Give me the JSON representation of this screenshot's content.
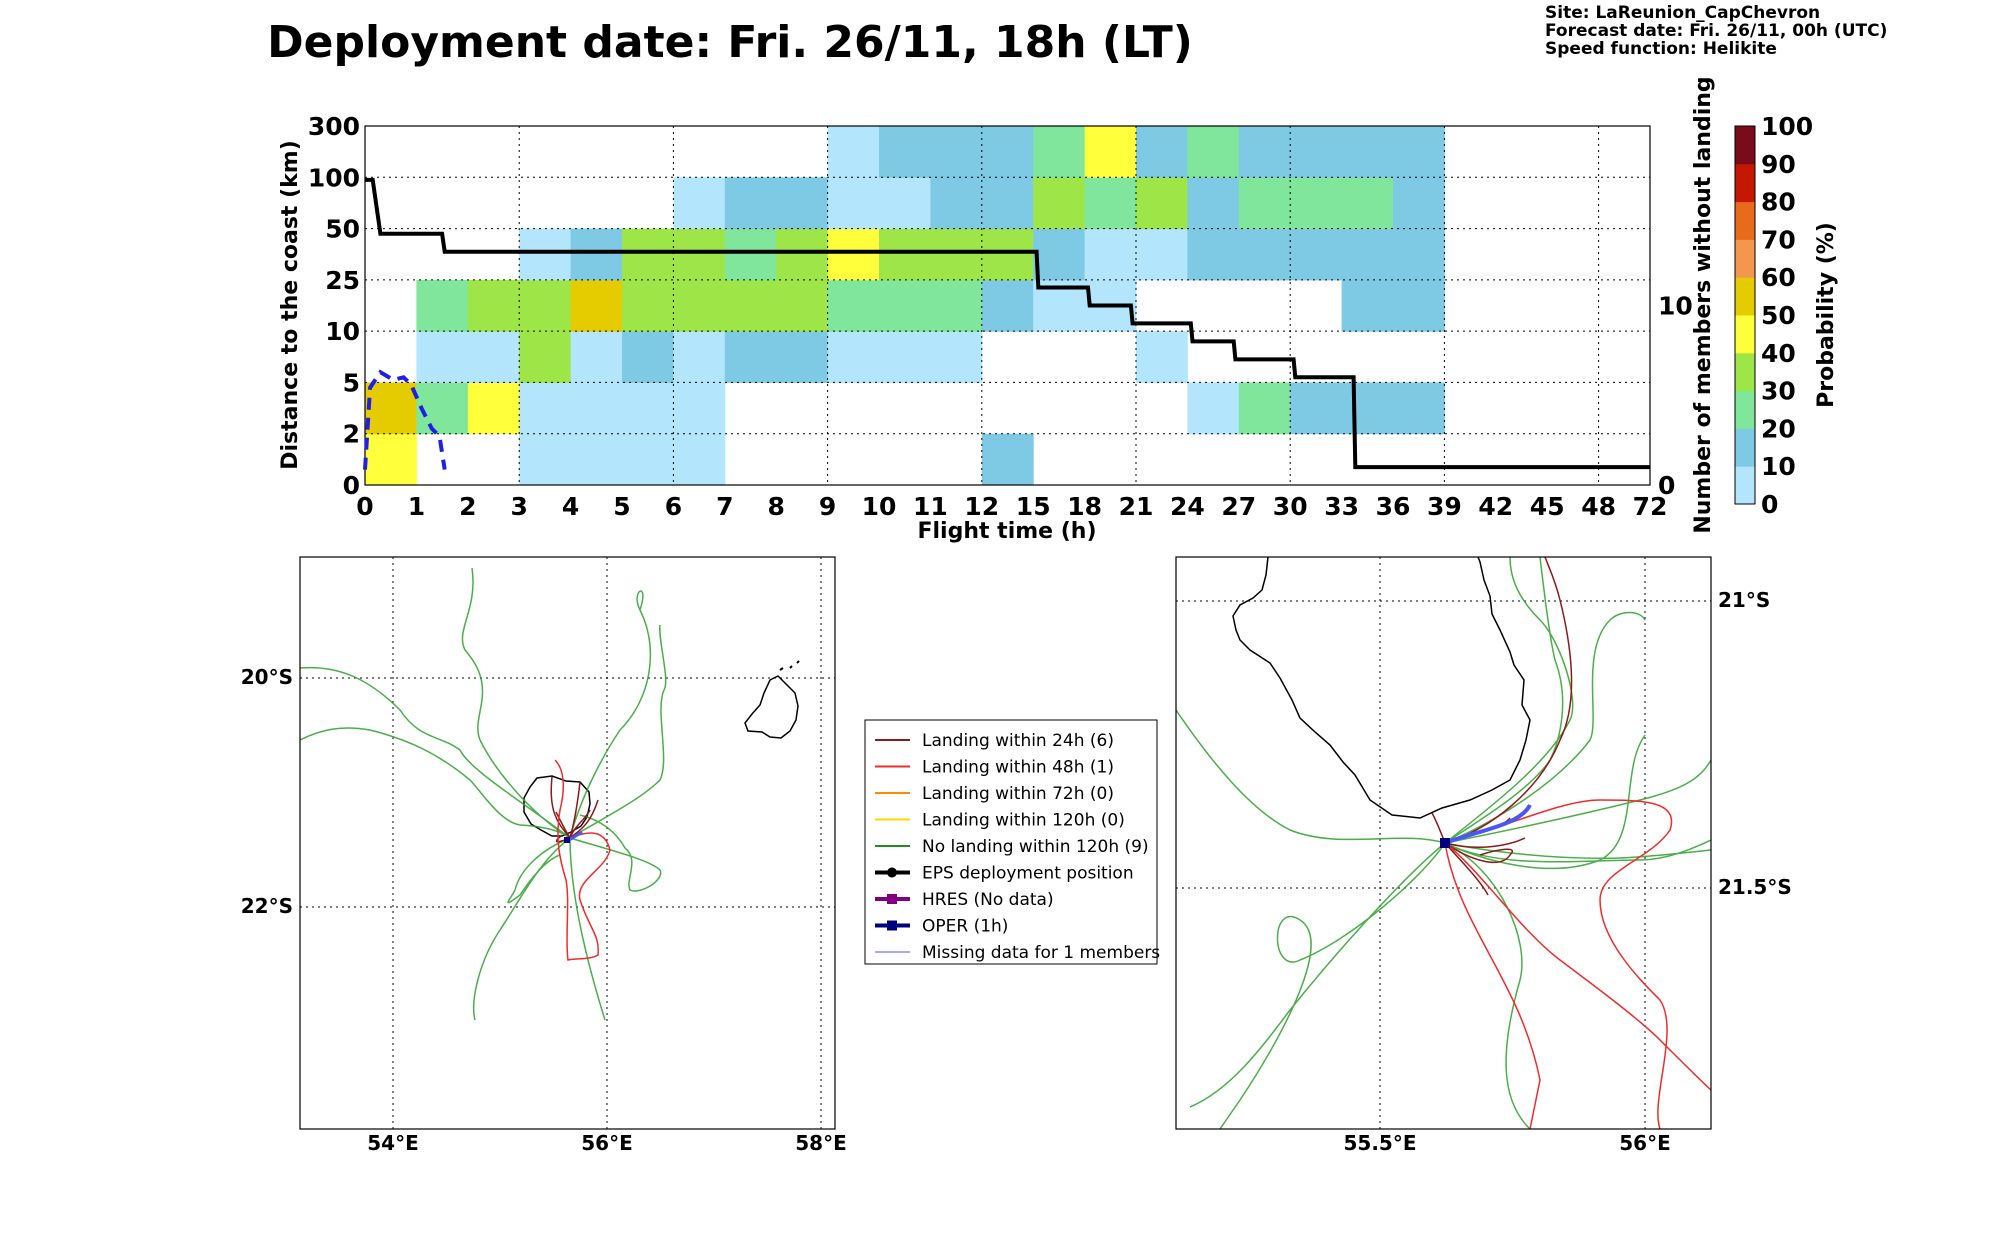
{
  "title": "Deployment date: Fri. 26/11, 18h (LT)",
  "info": {
    "site": "Site: LaReunion_CapChevron",
    "forecast": "Forecast date: Fri. 26/11, 00h (UTC)",
    "speed": "Speed function: Helikite"
  },
  "colors": {
    "prob_bins": [
      "#b3e5fc",
      "#7ecae4",
      "#7fe69b",
      "#9ee547",
      "#ffff3c",
      "#e5cc00",
      "#f5964f",
      "#e86a1c",
      "#c51800",
      "#7a0b1b"
    ],
    "landing24": "#8b1a1a",
    "landing48": "#ee2c2c",
    "landing72": "#ff8c00",
    "landing120": "#ffd700",
    "no_landing": "#228b22",
    "eps": "#000000",
    "hres": "#800080",
    "oper": "#00007f",
    "missing": "#4b57f5"
  },
  "chart_data": [
    {
      "type": "heatmap",
      "xlabel": "Flight time (h)",
      "ylabel": "Distance to the coast (km)",
      "ylabel_right": "Number of members without landing",
      "colorbar_label": "Probability (%)",
      "x_ticks": [
        "0",
        "1",
        "2",
        "3",
        "4",
        "5",
        "6",
        "7",
        "8",
        "9",
        "10",
        "11",
        "12",
        "15",
        "18",
        "21",
        "24",
        "27",
        "30",
        "33",
        "36",
        "39",
        "42",
        "45",
        "48",
        "72"
      ],
      "y_ticks": [
        "0",
        "2",
        "5",
        "10",
        "25",
        "50",
        "100",
        "300"
      ],
      "right_ticks": [
        "0",
        "10"
      ],
      "right_ylim": [
        0,
        20
      ],
      "colorbar_ticks": [
        "0",
        "10",
        "20",
        "30",
        "40",
        "50",
        "60",
        "70",
        "80",
        "90",
        "100"
      ],
      "cells": [
        [
          0,
          0,
          40
        ],
        [
          0,
          1,
          50
        ],
        [
          1,
          1,
          20
        ],
        [
          2,
          1,
          40
        ],
        [
          3,
          1,
          0
        ],
        [
          4,
          1,
          0
        ],
        [
          5,
          1,
          0
        ],
        [
          6,
          0,
          0
        ],
        [
          12,
          0,
          10
        ],
        [
          3,
          0,
          0
        ],
        [
          4,
          0,
          0
        ],
        [
          5,
          0,
          0
        ],
        [
          6,
          1,
          0
        ],
        [
          1,
          2,
          0
        ],
        [
          2,
          2,
          0
        ],
        [
          3,
          2,
          30
        ],
        [
          4,
          2,
          0
        ],
        [
          5,
          2,
          10
        ],
        [
          6,
          2,
          0
        ],
        [
          7,
          2,
          10
        ],
        [
          8,
          2,
          10
        ],
        [
          9,
          2,
          0
        ],
        [
          10,
          2,
          0
        ],
        [
          11,
          2,
          0
        ],
        [
          15,
          2,
          0
        ],
        [
          1,
          3,
          20
        ],
        [
          2,
          3,
          30
        ],
        [
          3,
          3,
          30
        ],
        [
          4,
          3,
          50
        ],
        [
          5,
          3,
          30
        ],
        [
          6,
          3,
          30
        ],
        [
          7,
          3,
          30
        ],
        [
          8,
          3,
          30
        ],
        [
          9,
          3,
          20
        ],
        [
          10,
          3,
          20
        ],
        [
          11,
          3,
          20
        ],
        [
          12,
          3,
          10
        ],
        [
          13,
          3,
          0
        ],
        [
          14,
          3,
          0
        ],
        [
          19,
          3,
          10
        ],
        [
          20,
          3,
          10
        ],
        [
          3,
          4,
          0
        ],
        [
          4,
          4,
          10
        ],
        [
          5,
          4,
          30
        ],
        [
          6,
          4,
          30
        ],
        [
          7,
          4,
          20
        ],
        [
          8,
          4,
          30
        ],
        [
          9,
          4,
          40
        ],
        [
          10,
          4,
          30
        ],
        [
          11,
          4,
          30
        ],
        [
          12,
          4,
          30
        ],
        [
          13,
          4,
          10
        ],
        [
          14,
          4,
          0
        ],
        [
          15,
          4,
          0
        ],
        [
          16,
          4,
          10
        ],
        [
          17,
          4,
          10
        ],
        [
          18,
          4,
          10
        ],
        [
          19,
          4,
          10
        ],
        [
          20,
          4,
          10
        ],
        [
          6,
          5,
          0
        ],
        [
          7,
          5,
          10
        ],
        [
          8,
          5,
          10
        ],
        [
          9,
          5,
          0
        ],
        [
          10,
          5,
          0
        ],
        [
          11,
          5,
          10
        ],
        [
          12,
          5,
          10
        ],
        [
          13,
          5,
          30
        ],
        [
          14,
          5,
          20
        ],
        [
          15,
          5,
          30
        ],
        [
          16,
          5,
          10
        ],
        [
          17,
          5,
          20
        ],
        [
          18,
          5,
          20
        ],
        [
          19,
          5,
          20
        ],
        [
          20,
          5,
          10
        ],
        [
          9,
          6,
          0
        ],
        [
          10,
          6,
          10
        ],
        [
          11,
          6,
          10
        ],
        [
          12,
          6,
          10
        ],
        [
          13,
          6,
          20
        ],
        [
          14,
          6,
          40
        ],
        [
          15,
          6,
          10
        ],
        [
          16,
          6,
          20
        ],
        [
          17,
          6,
          10
        ],
        [
          18,
          6,
          10
        ],
        [
          19,
          6,
          10
        ],
        [
          20,
          6,
          10
        ],
        [
          16,
          1,
          0
        ],
        [
          17,
          1,
          20
        ],
        [
          18,
          1,
          10
        ],
        [
          19,
          1,
          10
        ],
        [
          20,
          1,
          10
        ]
      ],
      "series": [
        {
          "name": "members without landing",
          "step_x_h": [
            0,
            0.15,
            0.3,
            1.5,
            1.55,
            15.2,
            15.3,
            18.2,
            18.3,
            20.7,
            20.8,
            24.2,
            24.3,
            26.7,
            26.8,
            30.2,
            30.3,
            33.7,
            33.8,
            72
          ],
          "step_y": [
            17,
            17,
            14,
            14,
            13,
            13,
            11,
            11,
            10,
            10,
            9,
            9,
            8,
            8,
            7,
            7,
            6,
            6,
            1,
            1
          ]
        },
        {
          "name": "distance (blue dashed)",
          "x_h": [
            0.0,
            0.1,
            0.3,
            0.55,
            0.75,
            0.9,
            1.1,
            1.3,
            1.45,
            1.55
          ],
          "y_km_index": [
            0.3,
            1.9,
            2.2,
            2.05,
            2.1,
            1.95,
            1.5,
            1.1,
            0.95,
            0.3
          ]
        }
      ]
    },
    {
      "type": "map",
      "x_ticks": [
        "54°E",
        "56°E",
        "58°E"
      ],
      "y_ticks": [
        "20°S",
        "22°S"
      ],
      "xlim": [
        53.1,
        58.1
      ],
      "ylim": [
        -24.0,
        -19.0
      ]
    },
    {
      "type": "map",
      "x_ticks": [
        "55.5°E",
        "56°E"
      ],
      "y_ticks": [
        "21°S",
        "21.5°S"
      ],
      "xlim": [
        55.1,
        56.12
      ],
      "ylim": [
        -22.0,
        -20.9
      ]
    }
  ],
  "legend": [
    {
      "label": "Landing within 24h (6)",
      "color_key": "landing24",
      "marker": "none"
    },
    {
      "label": "Landing within 48h (1)",
      "color_key": "landing48",
      "marker": "none"
    },
    {
      "label": "Landing within 72h (0)",
      "color_key": "landing72",
      "marker": "none"
    },
    {
      "label": "Landing within 120h (0)",
      "color_key": "landing120",
      "marker": "none"
    },
    {
      "label": "No landing within 120h (9)",
      "color_key": "no_landing",
      "marker": "none"
    },
    {
      "label": "EPS deployment position",
      "color_key": "eps",
      "marker": "circle"
    },
    {
      "label": "HRES (No data)",
      "color_key": "hres",
      "marker": "square"
    },
    {
      "label": "OPER (1h)",
      "color_key": "oper",
      "marker": "square"
    },
    {
      "label": "Missing data for 1 members",
      "color_key": "missing",
      "marker": "thin"
    }
  ]
}
